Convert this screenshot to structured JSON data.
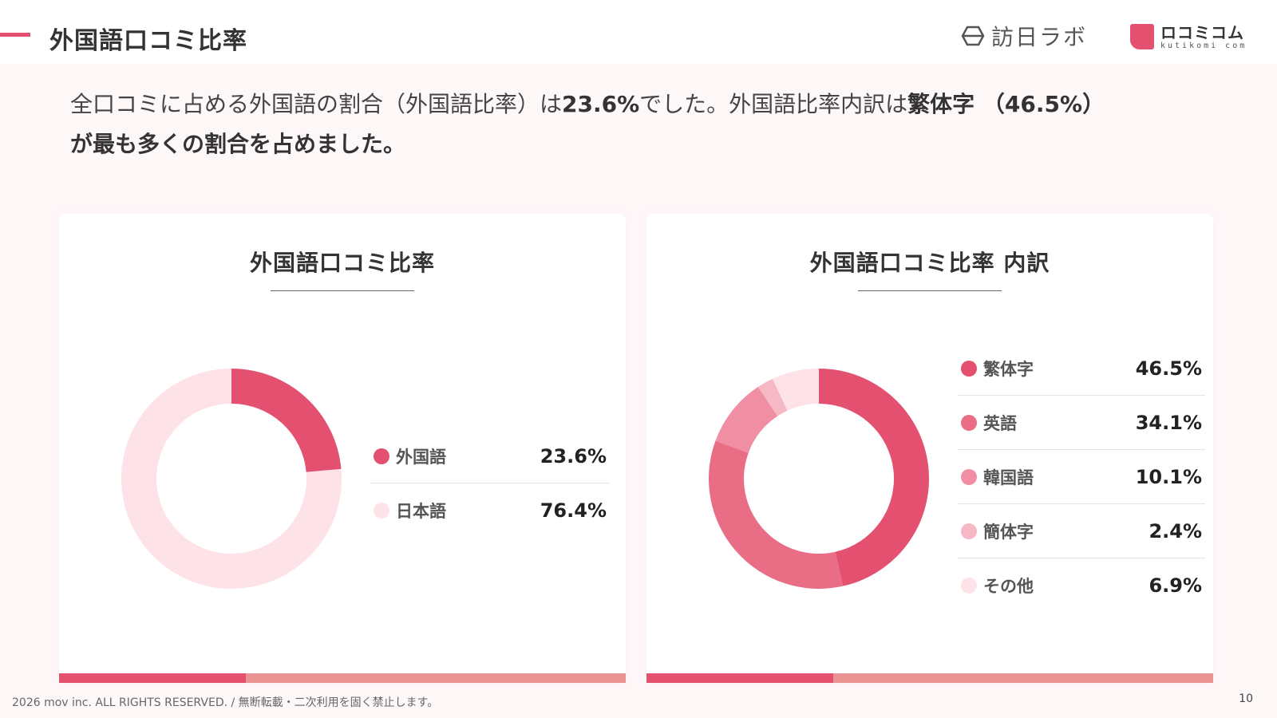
{
  "header": {
    "title": "外国語口コミ比率",
    "logo_houni": "訪日ラボ",
    "logo_kutikomi_main": "ロコミコム",
    "logo_kutikomi_sub": "kutikomi com",
    "accent_color": "#e4506f"
  },
  "summary": {
    "part1": "全口コミに占める外国語の割合（外国語比率）は",
    "highlight1": "23.6%",
    "part2": "でした。外国語比率内訳は",
    "highlight2": "繁体字",
    "part3": " （46.5%）",
    "line2": "が最も多くの割合を占めました。"
  },
  "chart_data": [
    {
      "type": "pie",
      "title": "外国語口コミ比率",
      "categories": [
        "外国語",
        "日本語"
      ],
      "values": [
        23.6,
        76.4
      ],
      "labels": [
        "23.6%",
        "76.4%"
      ],
      "colors": [
        "#e4506f",
        "#fde2e7"
      ],
      "donut": true,
      "legend": "right"
    },
    {
      "type": "pie",
      "title": "外国語口コミ比率 内訳",
      "categories": [
        "繁体字",
        "英語",
        "韓国語",
        "簡体字",
        "その他"
      ],
      "values": [
        46.5,
        34.1,
        10.1,
        2.4,
        6.9
      ],
      "labels": [
        "46.5%",
        "34.1%",
        "10.1%",
        "2.4%",
        "6.9%"
      ],
      "colors": [
        "#e4506f",
        "#ea6d86",
        "#f08fa3",
        "#f7b8c5",
        "#fde2e7"
      ],
      "donut": true,
      "legend": "right"
    }
  ],
  "footer": {
    "copyright": "2026 mov inc. ALL RIGHTS RESERVED. / 無断転載・二次利用を固く禁止します。",
    "page_number": "10"
  }
}
